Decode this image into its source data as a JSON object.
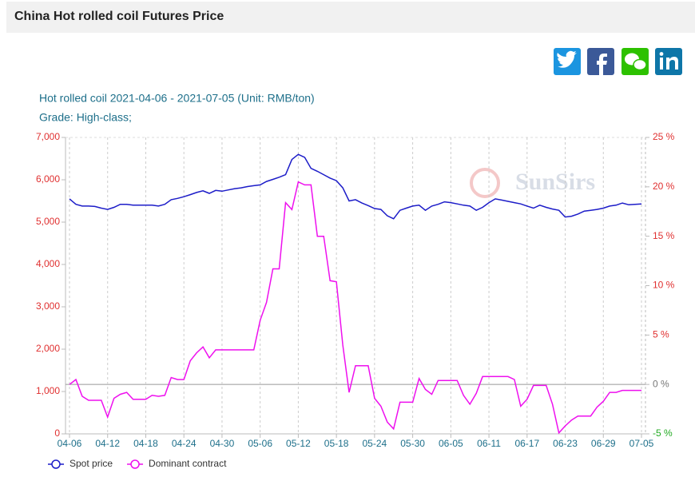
{
  "header": {
    "title": "China Hot rolled coil Futures Price"
  },
  "chart_data": {
    "type": "line",
    "title": "Hot rolled coil 2021-04-06 - 2021-07-05 (Unit: RMB/ton)",
    "subtitle": "Grade: High-class;",
    "watermark": "SunSirs",
    "categories": [
      "04-06",
      null,
      null,
      null,
      null,
      null,
      "04-12",
      null,
      null,
      null,
      null,
      null,
      "04-18",
      null,
      null,
      null,
      null,
      null,
      "04-24",
      null,
      null,
      null,
      null,
      null,
      "04-30",
      null,
      null,
      null,
      null,
      null,
      "05-06",
      null,
      null,
      null,
      null,
      null,
      "05-12",
      null,
      null,
      null,
      null,
      null,
      "05-18",
      null,
      null,
      null,
      null,
      null,
      "05-24",
      null,
      null,
      null,
      null,
      null,
      "05-30",
      null,
      null,
      null,
      null,
      null,
      "06-05",
      null,
      null,
      null,
      null,
      null,
      "06-11",
      null,
      null,
      null,
      null,
      null,
      "06-17",
      null,
      null,
      null,
      null,
      null,
      "06-23",
      null,
      null,
      null,
      null,
      null,
      "06-29",
      null,
      null,
      null,
      null,
      null,
      "07-05"
    ],
    "series": [
      {
        "name": "Spot price",
        "color": "#1c1cc8",
        "values": [
          5550,
          5420,
          5380,
          5380,
          5370,
          5330,
          5300,
          5350,
          5420,
          5420,
          5400,
          5400,
          5400,
          5400,
          5380,
          5420,
          5530,
          5560,
          5600,
          5650,
          5700,
          5740,
          5680,
          5750,
          5730,
          5760,
          5790,
          5810,
          5840,
          5860,
          5880,
          5960,
          6010,
          6060,
          6120,
          6480,
          6600,
          6530,
          6270,
          6200,
          6120,
          6040,
          5980,
          5810,
          5500,
          5530,
          5450,
          5390,
          5320,
          5300,
          5150,
          5080,
          5280,
          5330,
          5380,
          5400,
          5280,
          5380,
          5420,
          5480,
          5460,
          5430,
          5400,
          5380,
          5280,
          5350,
          5460,
          5550,
          5520,
          5490,
          5460,
          5430,
          5380,
          5330,
          5400,
          5350,
          5310,
          5280,
          5120,
          5140,
          5190,
          5260,
          5280,
          5300,
          5330,
          5380,
          5400,
          5450,
          5410,
          5420,
          5430
        ]
      },
      {
        "name": "Dominant contract",
        "color": "#ee10ee",
        "axis": "y2",
        "values": [
          0,
          0.5,
          -1.2,
          -1.6,
          -1.6,
          -1.6,
          -3.3,
          -1.4,
          -1.0,
          -0.8,
          -1.5,
          -1.5,
          -1.5,
          -1.1,
          -1.2,
          -1.1,
          0.7,
          0.5,
          0.5,
          2.4,
          3.2,
          3.8,
          2.7,
          3.5,
          3.5,
          3.5,
          3.5,
          3.5,
          3.5,
          3.5,
          6.5,
          8.3,
          11.7,
          11.7,
          18.4,
          17.7,
          20.5,
          20.2,
          20.2,
          15.0,
          15.0,
          10.5,
          10.4,
          4.0,
          -0.8,
          1.9,
          1.9,
          1.9,
          -1.4,
          -2.2,
          -3.8,
          -4.5,
          -1.8,
          -1.8,
          -1.8,
          0.6,
          -0.5,
          -1.0,
          0.4,
          0.4,
          0.4,
          0.4,
          -1.1,
          -2.0,
          -0.9,
          0.8,
          0.8,
          0.8,
          0.8,
          0.8,
          0.5,
          -2.2,
          -1.5,
          -0.1,
          -0.1,
          -0.1,
          -2.0,
          -4.9,
          -4.2,
          -3.6,
          -3.2,
          -3.2,
          -3.2,
          -2.3,
          -1.7,
          -0.8,
          -0.8,
          -0.6,
          -0.6,
          -0.6,
          -0.6
        ]
      }
    ],
    "ylim": [
      0,
      7000
    ],
    "yticks": [
      0,
      {
        "value": 1000,
        "label": "1,000"
      },
      {
        "value": 2000,
        "label": "2,000"
      },
      {
        "value": 3000,
        "label": "3,000"
      },
      {
        "value": 4000,
        "label": "4,000"
      },
      {
        "value": 5000,
        "label": "5,000"
      },
      {
        "value": 6000,
        "label": "6,000"
      },
      {
        "value": 7000,
        "label": "7,000"
      }
    ],
    "y2lim": [
      -5,
      25
    ],
    "y2ticks": [
      {
        "value": -5,
        "label": "-5 %"
      },
      {
        "value": 0,
        "label": "0 %"
      },
      {
        "value": 5,
        "label": "5 %"
      },
      {
        "value": 10,
        "label": "10 %"
      },
      {
        "value": 15,
        "label": "15 %"
      },
      {
        "value": 20,
        "label": "20 %"
      },
      {
        "value": 25,
        "label": "25 %"
      }
    ],
    "legend": "bottom-left"
  }
}
